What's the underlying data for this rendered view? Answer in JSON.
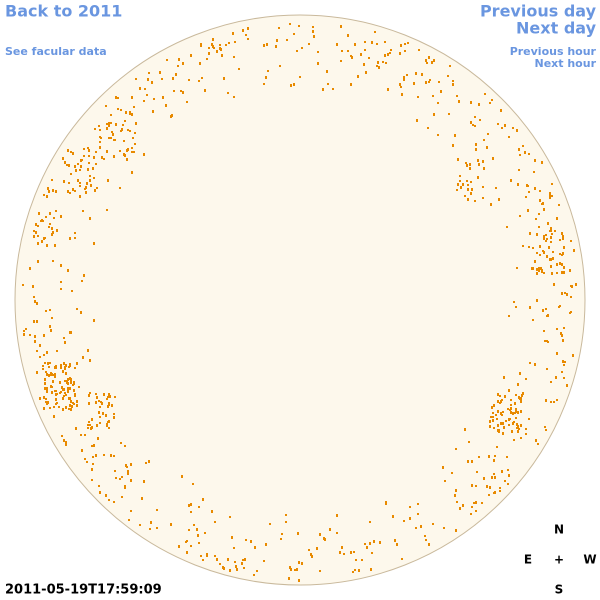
{
  "nav": {
    "back_year": "Back to 2011",
    "previous_day": "Previous day",
    "next_day": "Next day",
    "facular_data": "See facular data",
    "previous_hour": "Previous hour",
    "next_hour": "Next hour"
  },
  "compass": {
    "north": "N",
    "east": "E",
    "center": "+",
    "west": "W",
    "south": "S"
  },
  "timestamp": "2011-05-19T17:59:09"
}
